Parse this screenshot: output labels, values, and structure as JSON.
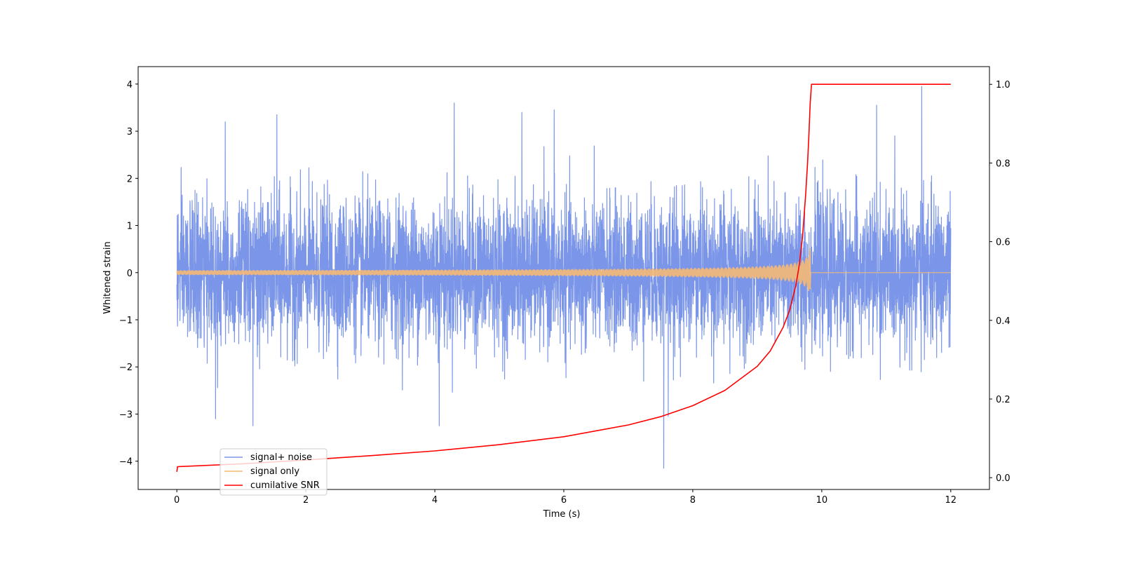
{
  "chart_data": {
    "type": "line",
    "xlabel": "Time (s)",
    "ylabel": "Whitened strain",
    "y2label": "",
    "xlim": [
      -0.6,
      12.6
    ],
    "ylim": [
      -4.6,
      4.37
    ],
    "y2lim": [
      -0.03,
      1.045
    ],
    "xticks": [
      0,
      2,
      4,
      6,
      8,
      10,
      12
    ],
    "yticks": [
      -4,
      -3,
      -2,
      -1,
      0,
      1,
      2,
      3,
      4
    ],
    "y2ticks": [
      0.0,
      0.2,
      0.4,
      0.6,
      0.8,
      1.0
    ],
    "y2tick_labels": [
      "0.0",
      "0.2",
      "0.4",
      "0.6",
      "0.8",
      "1.0"
    ],
    "grid": false,
    "legend_position": "lower-left",
    "series": [
      {
        "name": "signal+ noise",
        "axis": "left",
        "color": "#7b96e8",
        "description_values": "whitened noise, standard deviation about 0.75, peaks near ±3.5",
        "x_range": [
          0,
          12
        ],
        "noise_std": 0.75,
        "spikes": [
          {
            "x": 0.75,
            "y": 3.2
          },
          {
            "x": 1.55,
            "y": 3.35
          },
          {
            "x": 4.3,
            "y": 3.6
          },
          {
            "x": 5.35,
            "y": 3.4
          },
          {
            "x": 5.85,
            "y": 3.45
          },
          {
            "x": 10.85,
            "y": 3.55
          },
          {
            "x": 11.55,
            "y": 3.95
          },
          {
            "x": 0.6,
            "y": -3.1
          },
          {
            "x": 1.18,
            "y": -3.25
          },
          {
            "x": 4.07,
            "y": -3.25
          },
          {
            "x": 7.55,
            "y": -4.15
          },
          {
            "x": 7.62,
            "y": -3.05
          }
        ]
      },
      {
        "name": "signal only",
        "axis": "left",
        "color": "#f5b874",
        "chirp_end": 9.83,
        "peak_amplitude": 0.6,
        "x_range": [
          0,
          12
        ]
      },
      {
        "name": "cumilative SNR",
        "axis": "right",
        "color": "#ff0000",
        "points": [
          [
            0.0,
            0.015
          ],
          [
            0.01,
            0.028
          ],
          [
            1.0,
            0.035
          ],
          [
            2.0,
            0.045
          ],
          [
            3.0,
            0.056
          ],
          [
            4.0,
            0.068
          ],
          [
            5.0,
            0.084
          ],
          [
            6.0,
            0.104
          ],
          [
            7.0,
            0.134
          ],
          [
            7.5,
            0.155
          ],
          [
            8.0,
            0.183
          ],
          [
            8.5,
            0.222
          ],
          [
            9.0,
            0.283
          ],
          [
            9.2,
            0.322
          ],
          [
            9.4,
            0.382
          ],
          [
            9.5,
            0.425
          ],
          [
            9.6,
            0.49
          ],
          [
            9.65,
            0.54
          ],
          [
            9.7,
            0.61
          ],
          [
            9.75,
            0.72
          ],
          [
            9.78,
            0.8
          ],
          [
            9.8,
            0.87
          ],
          [
            9.82,
            0.95
          ],
          [
            9.84,
            1.0
          ],
          [
            12.0,
            1.0
          ]
        ]
      }
    ]
  }
}
